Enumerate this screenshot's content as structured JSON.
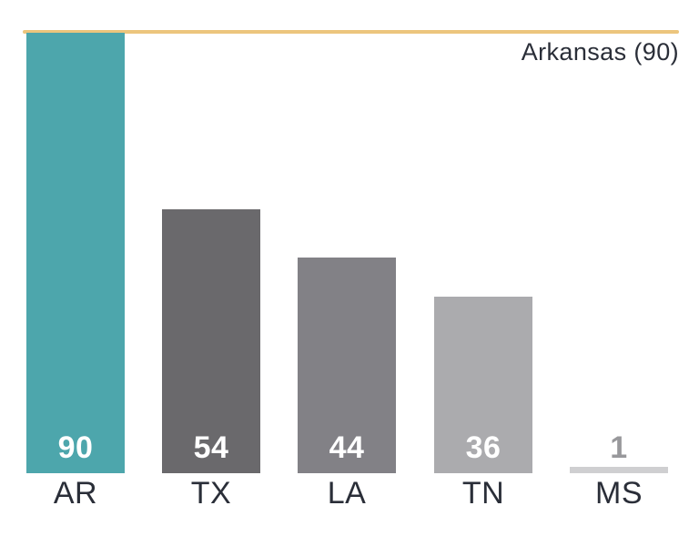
{
  "chart_data": {
    "type": "bar",
    "categories": [
      "AR",
      "TX",
      "LA",
      "TN",
      "MS"
    ],
    "values": [
      90,
      54,
      44,
      36,
      1
    ],
    "value_labels": [
      "90",
      "54",
      "44",
      "36",
      "1"
    ],
    "bar_colors": [
      "#4da6ac",
      "#6a696c",
      "#828186",
      "#ababae",
      "#cfcfd1"
    ],
    "value_label_colors": [
      "#ffffff",
      "#ffffff",
      "#ffffff",
      "#ffffff",
      "#98989b"
    ],
    "title": "",
    "xlabel": "",
    "ylabel": "",
    "ylim": [
      0,
      90
    ],
    "grid": false,
    "legend": false,
    "annotation": "Arkansas (90)",
    "reference_line": {
      "value": 90,
      "color": "#ecc57d"
    }
  },
  "colors": {
    "background": "#ffffff",
    "text": "#2a2e38",
    "accent_line": "#ecc57d"
  }
}
